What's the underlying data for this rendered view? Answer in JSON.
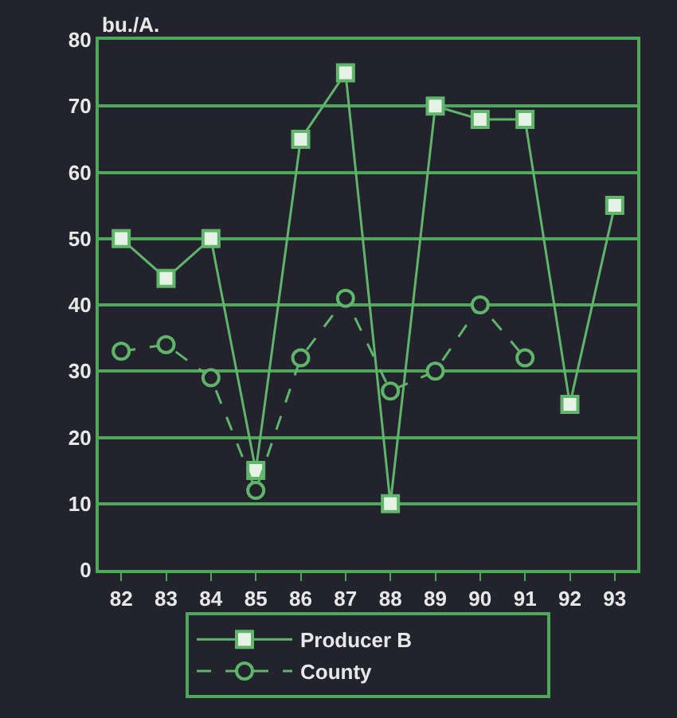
{
  "chart_data": {
    "type": "line",
    "ylabel": "bu./A.",
    "categories": [
      "82",
      "83",
      "84",
      "85",
      "86",
      "87",
      "88",
      "89",
      "90",
      "91",
      "92",
      "93"
    ],
    "series": [
      {
        "name": "Producer B",
        "color": "#5fb56a",
        "marker": "square",
        "line_style": "solid",
        "values": [
          50,
          44,
          50,
          15,
          65,
          75,
          10,
          70,
          68,
          68,
          25,
          55
        ]
      },
      {
        "name": "County",
        "color": "#5fb56a",
        "marker": "circle",
        "line_style": "dashed",
        "values": [
          33,
          34,
          29,
          12,
          32,
          41,
          27,
          30,
          40,
          32,
          null,
          null
        ]
      }
    ],
    "ylim": [
      0,
      80
    ],
    "yticks": [
      0,
      10,
      20,
      30,
      40,
      50,
      60,
      70,
      80
    ],
    "grid": "y",
    "legend": "bottom"
  }
}
